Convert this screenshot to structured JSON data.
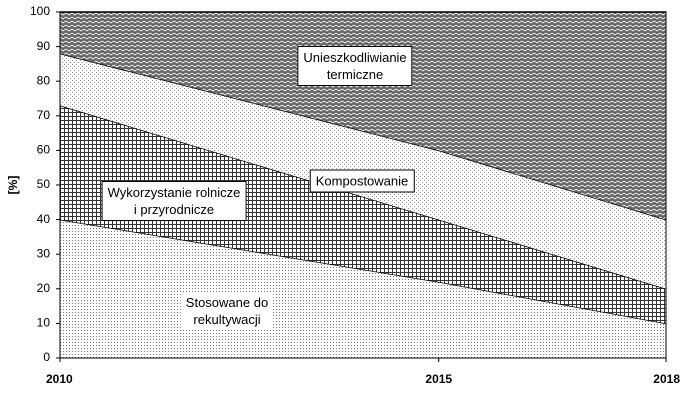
{
  "chart_data": {
    "type": "stacked-area",
    "y_label": "[%]",
    "x": [
      2010,
      2015,
      2018
    ],
    "series": [
      {
        "name": "Stosowane do\nrekultywacji",
        "color": "#d9d9d9",
        "values": [
          40,
          22,
          10
        ]
      },
      {
        "name": "Wykorzystanie rolnicze\ni przyrodnicze",
        "color": "#8c8c8c",
        "values": [
          33,
          18,
          10
        ]
      },
      {
        "name": "Kompostowanie",
        "color": "#e6e6e6",
        "values": [
          15,
          20,
          20
        ]
      },
      {
        "name": "Unieszkodliwianie\ntermiczne",
        "color": "#555555",
        "values": [
          12,
          40,
          60
        ]
      }
    ],
    "xlim": [
      2010,
      2018
    ],
    "xticks": [
      2010,
      2015,
      2018
    ],
    "ylim": [
      0,
      100
    ],
    "yticks": [
      0,
      10,
      20,
      30,
      40,
      50,
      60,
      70,
      80,
      90,
      100
    ]
  }
}
